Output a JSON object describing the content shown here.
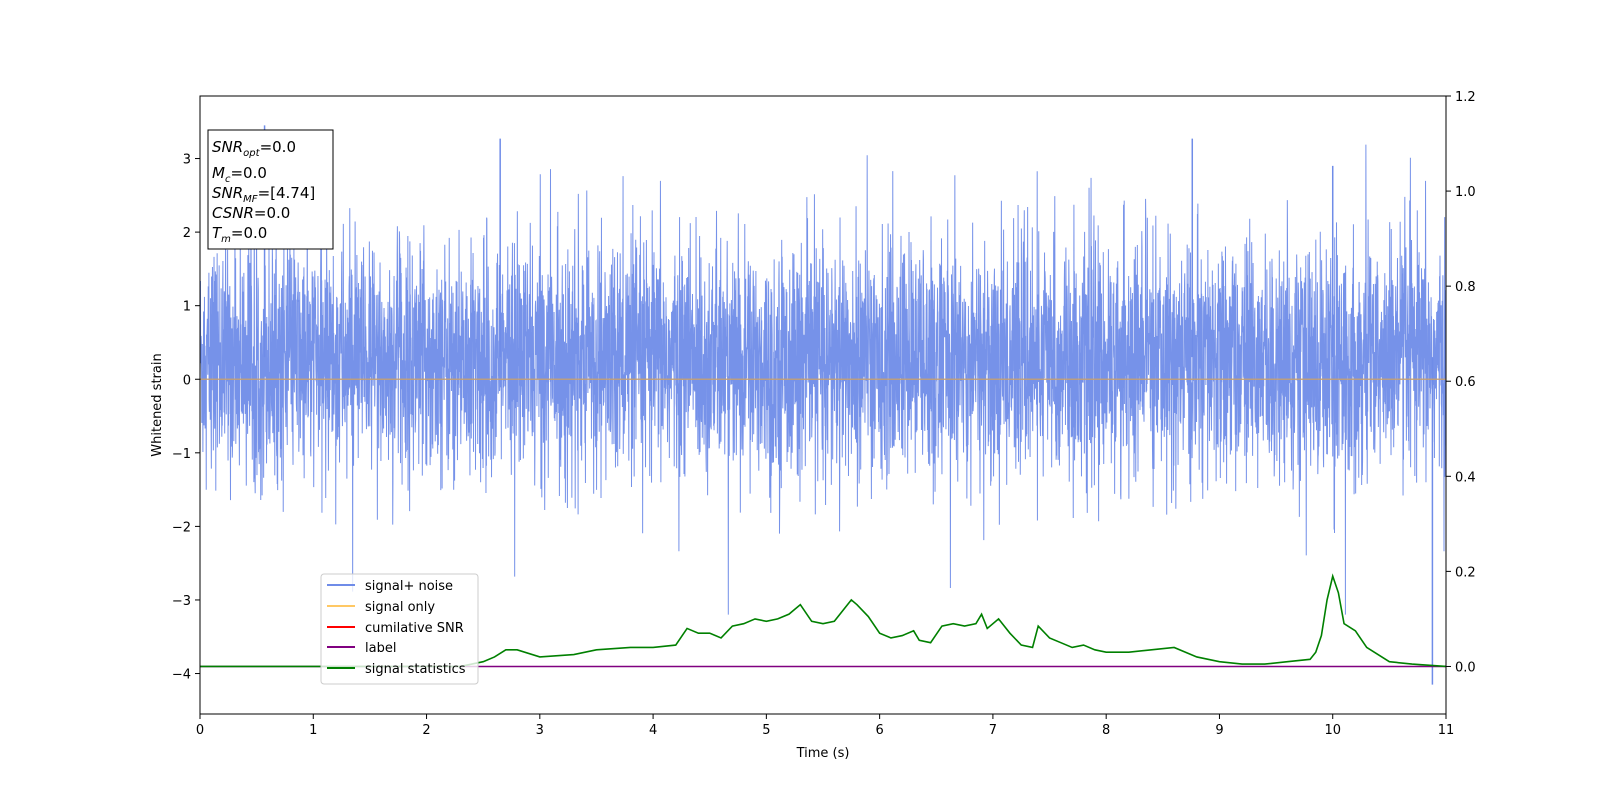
{
  "chart_data": {
    "type": "line",
    "xlabel": "Time (s)",
    "ylabel": "Whitened strain",
    "xlim": [
      0,
      11
    ],
    "ylim_left": [
      -4.55,
      3.85
    ],
    "ylim_right": [
      -0.1,
      1.2
    ],
    "x_ticks": [
      "0",
      "1",
      "2",
      "3",
      "4",
      "5",
      "6",
      "7",
      "8",
      "9",
      "10",
      "11"
    ],
    "y_ticks_left": [
      "−4",
      "−3",
      "−2",
      "−1",
      "0",
      "1",
      "2",
      "3"
    ],
    "y_ticks_right": [
      "0.0",
      "0.2",
      "0.4",
      "0.6",
      "0.8",
      "1.0",
      "1.2"
    ],
    "grid": false,
    "legend_position": "lower-left",
    "series": [
      {
        "name": "signal+ noise",
        "axis": "left",
        "color": "#6f8ce8",
        "description_values": {
          "typical_range": [
            -1.9,
            2.3
          ],
          "max": 3.45,
          "min": -4.15
        }
      },
      {
        "name": "signal only",
        "axis": "left",
        "color": "#ffc864",
        "x": [
          0,
          11
        ],
        "y": [
          0,
          0
        ]
      },
      {
        "name": "cumilative SNR",
        "axis": "left",
        "color": "#ff0000",
        "x": [
          0,
          11
        ],
        "y": [
          0,
          0
        ]
      },
      {
        "name": "label",
        "axis": "right",
        "color": "#800080",
        "x": [
          0,
          11
        ],
        "y": [
          0,
          0
        ]
      },
      {
        "name": "signal statistics",
        "axis": "right",
        "color": "#008000",
        "x": [
          0,
          0.5,
          1.0,
          1.5,
          2.0,
          2.3,
          2.5,
          2.6,
          2.7,
          2.8,
          3.0,
          3.3,
          3.5,
          3.8,
          4.0,
          4.2,
          4.3,
          4.4,
          4.5,
          4.6,
          4.7,
          4.8,
          4.9,
          5.0,
          5.1,
          5.2,
          5.25,
          5.3,
          5.4,
          5.5,
          5.6,
          5.7,
          5.75,
          5.8,
          5.9,
          6.0,
          6.1,
          6.2,
          6.3,
          6.35,
          6.45,
          6.55,
          6.65,
          6.75,
          6.85,
          6.9,
          6.95,
          7.05,
          7.15,
          7.25,
          7.35,
          7.4,
          7.5,
          7.6,
          7.7,
          7.8,
          7.9,
          8.0,
          8.2,
          8.4,
          8.6,
          8.8,
          9.0,
          9.2,
          9.4,
          9.6,
          9.8,
          9.85,
          9.9,
          9.95,
          10.0,
          10.05,
          10.1,
          10.2,
          10.3,
          10.4,
          10.5,
          10.7,
          11.0
        ],
        "y": [
          0.0,
          0.0,
          0.0,
          0.0,
          0.0,
          0.0,
          0.01,
          0.02,
          0.035,
          0.035,
          0.02,
          0.025,
          0.035,
          0.04,
          0.04,
          0.045,
          0.08,
          0.07,
          0.07,
          0.06,
          0.085,
          0.09,
          0.1,
          0.095,
          0.1,
          0.11,
          0.12,
          0.13,
          0.095,
          0.09,
          0.095,
          0.125,
          0.14,
          0.13,
          0.105,
          0.07,
          0.06,
          0.065,
          0.075,
          0.055,
          0.05,
          0.085,
          0.09,
          0.085,
          0.09,
          0.11,
          0.08,
          0.1,
          0.07,
          0.045,
          0.04,
          0.085,
          0.06,
          0.05,
          0.04,
          0.045,
          0.035,
          0.03,
          0.03,
          0.035,
          0.04,
          0.02,
          0.01,
          0.005,
          0.005,
          0.01,
          0.015,
          0.03,
          0.065,
          0.14,
          0.19,
          0.155,
          0.09,
          0.075,
          0.04,
          0.025,
          0.01,
          0.005,
          0.0
        ]
      }
    ],
    "annotation_lines": [
      "SNR_opt=0.0",
      "M_c=0.0",
      "SNR_MF=[4.74]",
      "CSNR=0.0",
      "T_m=0.0"
    ]
  },
  "stats": {
    "snr_opt": {
      "main": "SNR",
      "sub": "opt",
      "rest": "=0.0"
    },
    "mc": {
      "main": "M",
      "sub": "c",
      "rest": "=0.0"
    },
    "snr_mf": {
      "main": "SNR",
      "sub": "MF",
      "rest": "=[4.74]"
    },
    "csnr": {
      "main": "CSNR",
      "sub": "",
      "rest": "=0.0"
    },
    "tm": {
      "main": "T",
      "sub": "m",
      "rest": "=0.0"
    }
  },
  "colors": {
    "noise": "#6f8ce8",
    "signal_only": "#ffc864",
    "cumulative_snr": "#ff0000",
    "label": "#800080",
    "statistics": "#008000"
  }
}
